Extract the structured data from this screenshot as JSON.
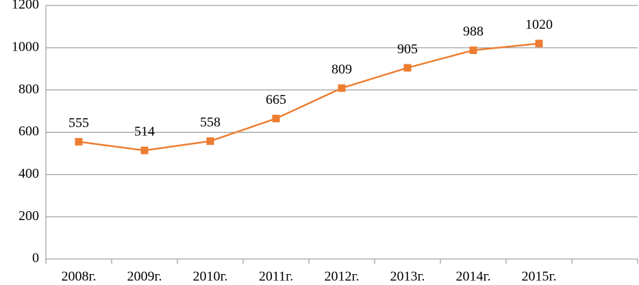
{
  "chart_data": {
    "type": "line",
    "categories": [
      "2008г.",
      "2009г.",
      "2010г.",
      "2011г.",
      "2012г.",
      "2013г.",
      "2014г.",
      "2015г.",
      null
    ],
    "series": [
      {
        "color": "#ed7d31",
        "values": [
          555,
          514,
          558,
          665,
          809,
          905,
          988,
          1020,
          null
        ]
      }
    ],
    "ylim": [
      0,
      1200
    ],
    "yticks": [
      0,
      200,
      400,
      600,
      800,
      1000,
      1200
    ],
    "grid": true
  }
}
